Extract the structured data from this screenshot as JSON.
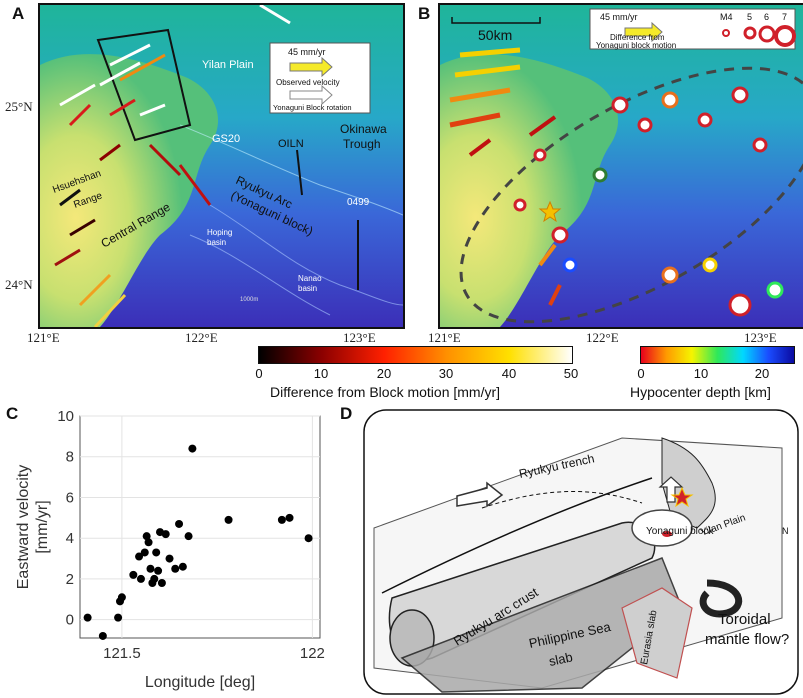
{
  "panels": {
    "a": {
      "letter": "A",
      "lat_labels": [
        "25°N",
        "24°N"
      ],
      "lon_labels": [
        "121°E",
        "122°E",
        "123°E"
      ],
      "legend": {
        "speed": "45 mm/yr",
        "observed": "Observed velocity",
        "block": "Yonaguni Block rotation"
      },
      "labels": {
        "yilan": "Yilan Plain",
        "gs20": "GS20",
        "oiln": "OILN",
        "okinawa1": "Okinawa",
        "okinawa2": "Trough",
        "ryukyu1": "Ryukyu Arc",
        "ryukyu2": "(Yonaguni block)",
        "station": "0499",
        "hsuehshan1": "Hsuehshan",
        "hsuehshan2": "Range",
        "central": "Central Range",
        "hoping1": "Hoping",
        "hoping2": "basin",
        "nanao1": "Nanao",
        "nanao2": "basin",
        "depth": "1000m"
      }
    },
    "b": {
      "letter": "B",
      "lon_labels": [
        "121°E",
        "122°E",
        "123°E"
      ],
      "scale": "50km",
      "legend": {
        "speed": "45 mm/yr",
        "diff1": "Difference from",
        "diff2": "Yonaguni block motion",
        "mags": [
          "M4",
          "5",
          "6",
          "7"
        ]
      }
    },
    "c": {
      "letter": "C",
      "ylabel1": "Eastward velocity",
      "ylabel2": "[mm/yr]",
      "xlabel": "Longitude [deg]"
    },
    "d": {
      "letter": "D",
      "labels": {
        "trench": "Ryukyu trench",
        "yonaguni": "Yonaguni block",
        "yilan": "Yilan Plain",
        "north": "N",
        "crust": "Ryukyu arc crust",
        "psslab1": "Philippine Sea",
        "psslab2": "slab",
        "eurasia": "Eurasia slab",
        "flow1": "Toroidal",
        "flow2": "mantle flow?"
      }
    }
  },
  "colorbars": {
    "block_motion": {
      "ticks": [
        "0",
        "10",
        "20",
        "30",
        "40",
        "50"
      ],
      "label": "Difference from Block motion [mm/yr]",
      "colors": [
        "#000000",
        "#8b0000",
        "#ff2000",
        "#ff9000",
        "#ffe000",
        "#ffffff"
      ]
    },
    "depth": {
      "ticks": [
        "0",
        "10",
        "20"
      ],
      "label": "Hypocenter depth [km]",
      "colors": [
        "#e8001c",
        "#ff9a00",
        "#f5f500",
        "#2ee85a",
        "#00d8ff",
        "#1a4cff",
        "#0a0aa0"
      ]
    }
  },
  "chart_data": {
    "type": "scatter",
    "xlabel": "Longitude [deg]",
    "ylabel": "Eastward velocity [mm/yr]",
    "xlim": [
      121.39,
      122.02
    ],
    "ylim": [
      -0.9,
      10
    ],
    "x_ticks": [
      121.5,
      122
    ],
    "x_tick_labels": [
      "121.5",
      "122"
    ],
    "y_ticks": [
      0,
      2,
      4,
      6,
      8,
      10
    ],
    "grid": true,
    "points": [
      {
        "x": 121.41,
        "y": 0.1
      },
      {
        "x": 121.45,
        "y": -0.8
      },
      {
        "x": 121.49,
        "y": 0.1
      },
      {
        "x": 121.495,
        "y": 0.9
      },
      {
        "x": 121.5,
        "y": 1.1
      },
      {
        "x": 121.53,
        "y": 2.2
      },
      {
        "x": 121.545,
        "y": 3.1
      },
      {
        "x": 121.55,
        "y": 2.0
      },
      {
        "x": 121.56,
        "y": 3.3
      },
      {
        "x": 121.565,
        "y": 4.1
      },
      {
        "x": 121.57,
        "y": 3.8
      },
      {
        "x": 121.575,
        "y": 2.5
      },
      {
        "x": 121.58,
        "y": 1.8
      },
      {
        "x": 121.585,
        "y": 2.0
      },
      {
        "x": 121.59,
        "y": 3.3
      },
      {
        "x": 121.595,
        "y": 2.4
      },
      {
        "x": 121.6,
        "y": 4.3
      },
      {
        "x": 121.605,
        "y": 1.8
      },
      {
        "x": 121.615,
        "y": 4.2
      },
      {
        "x": 121.625,
        "y": 3.0
      },
      {
        "x": 121.64,
        "y": 2.5
      },
      {
        "x": 121.65,
        "y": 4.7
      },
      {
        "x": 121.66,
        "y": 2.6
      },
      {
        "x": 121.675,
        "y": 4.1
      },
      {
        "x": 121.685,
        "y": 8.4
      },
      {
        "x": 121.78,
        "y": 4.9
      },
      {
        "x": 121.92,
        "y": 4.9
      },
      {
        "x": 121.94,
        "y": 5.0
      },
      {
        "x": 121.99,
        "y": 4.0
      }
    ]
  }
}
